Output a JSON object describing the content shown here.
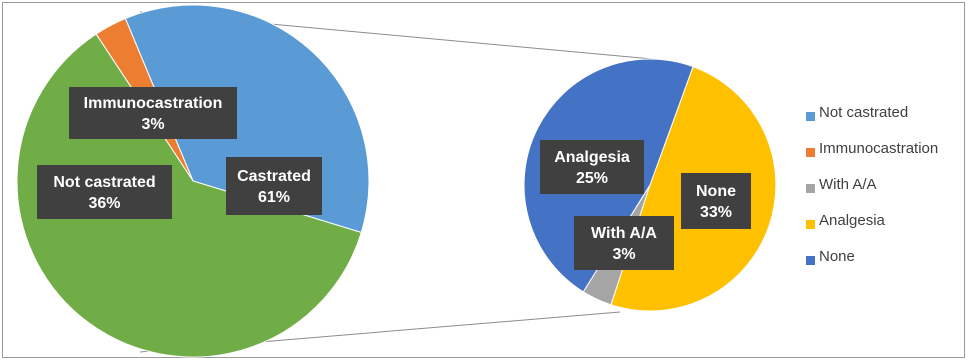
{
  "chart_data": [
    {
      "type": "pie",
      "categories": [
        "Not castrated",
        "Immunocastration",
        "Castrated"
      ],
      "values": [
        36,
        3,
        61
      ],
      "data_labels": [
        {
          "name": "Not castrated",
          "value": "36%"
        },
        {
          "name": "Immunocastration",
          "value": "3%"
        },
        {
          "name": "Castrated",
          "value": "61%"
        }
      ],
      "colors": [
        "#5b9bd5",
        "#ed7d31",
        "#70ad47"
      ]
    },
    {
      "type": "pie",
      "categories": [
        "With A/A",
        "Analgesia",
        "None"
      ],
      "values": [
        3,
        25,
        33
      ],
      "data_labels": [
        {
          "name": "With A/A",
          "value": "3%"
        },
        {
          "name": "Analgesia",
          "value": "25%"
        },
        {
          "name": "None",
          "value": "33%"
        }
      ],
      "colors": [
        "#a5a5a5",
        "#ffc000",
        "#4472c4"
      ]
    }
  ],
  "legend": {
    "position": "right",
    "items": [
      {
        "label": "Not castrated",
        "color": "#5b9bd5"
      },
      {
        "label": "Immunocastration",
        "color": "#ed7d31"
      },
      {
        "label": "With A/A",
        "color": "#a5a5a5"
      },
      {
        "label": "Analgesia",
        "color": "#ffc000"
      },
      {
        "label": "None",
        "color": "#4472c4"
      }
    ]
  }
}
